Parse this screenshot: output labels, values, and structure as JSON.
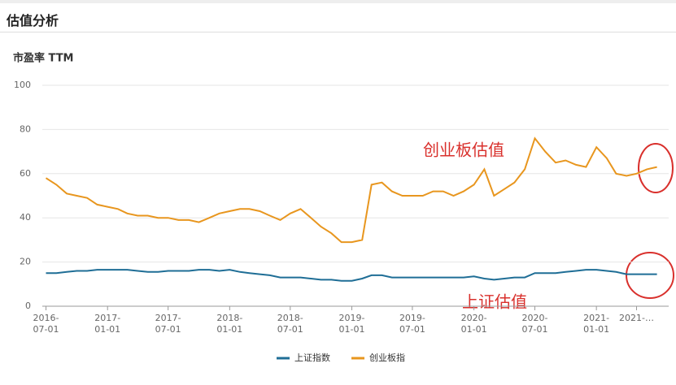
{
  "header": {
    "title": "估值分析"
  },
  "chart_data": {
    "type": "line",
    "y_label": "市盈率 TTM",
    "x": [
      "2016-07-01",
      "2016-08-01",
      "2016-09-01",
      "2016-10-01",
      "2016-11-01",
      "2016-12-01",
      "2017-01-01",
      "2017-02-01",
      "2017-03-01",
      "2017-04-01",
      "2017-05-01",
      "2017-06-01",
      "2017-07-01",
      "2017-08-01",
      "2017-09-01",
      "2017-10-01",
      "2017-11-01",
      "2017-12-01",
      "2018-01-01",
      "2018-02-01",
      "2018-03-01",
      "2018-04-01",
      "2018-05-01",
      "2018-06-01",
      "2018-07-01",
      "2018-08-01",
      "2018-09-01",
      "2018-10-01",
      "2018-11-01",
      "2018-12-01",
      "2019-01-01",
      "2019-02-01",
      "2019-03-01",
      "2019-04-01",
      "2019-05-01",
      "2019-06-01",
      "2019-07-01",
      "2019-08-01",
      "2019-09-01",
      "2019-10-01",
      "2019-11-01",
      "2019-12-01",
      "2020-01-01",
      "2020-02-01",
      "2020-03-01",
      "2020-04-01",
      "2020-05-01",
      "2020-06-01",
      "2020-07-01",
      "2020-08-01",
      "2020-09-01",
      "2020-10-01",
      "2020-11-01",
      "2020-12-01",
      "2021-01-01",
      "2021-02-01",
      "2021-03-01",
      "2021-04-01",
      "2021-05-01",
      "2021-06-01",
      "2021-07-01"
    ],
    "series": [
      {
        "name": "上证指数",
        "color": "#1f6e96",
        "values": [
          15,
          15,
          15.5,
          16,
          16,
          16.5,
          16.5,
          16.5,
          16.5,
          16,
          15.5,
          15.5,
          16,
          16,
          16,
          16.5,
          16.5,
          16,
          16.5,
          15.5,
          15,
          14.5,
          14,
          13,
          13,
          13,
          12.5,
          12,
          12,
          11.5,
          11.5,
          12.5,
          14,
          14,
          13,
          13,
          13,
          13,
          13,
          13,
          13,
          13,
          13.5,
          12.5,
          12,
          12.5,
          13,
          13,
          15,
          15,
          15,
          15.5,
          16,
          16.5,
          16.5,
          16,
          15.5,
          14.5,
          14.5,
          14.5,
          14.5
        ]
      },
      {
        "name": "创业板指",
        "color": "#e8961e",
        "values": [
          58,
          55,
          51,
          50,
          49,
          46,
          45,
          44,
          42,
          41,
          41,
          40,
          40,
          39,
          39,
          38,
          40,
          42,
          43,
          44,
          44,
          43,
          41,
          39,
          42,
          44,
          40,
          36,
          33,
          29,
          29,
          30,
          55,
          56,
          52,
          50,
          50,
          50,
          52,
          52,
          50,
          52,
          55,
          62,
          50,
          53,
          56,
          62,
          76,
          70,
          65,
          66,
          64,
          63,
          72,
          67,
          60,
          59,
          60,
          62,
          63
        ]
      }
    ],
    "xlim": [
      "2016-06-20",
      "2021-08-05"
    ],
    "xticks": [
      {
        "value": "2016-07-01",
        "label": "2016-07-01"
      },
      {
        "value": "2017-01-01",
        "label": "2017-01-01"
      },
      {
        "value": "2017-07-01",
        "label": "2017-07-01"
      },
      {
        "value": "2018-01-01",
        "label": "2018-01-01"
      },
      {
        "value": "2018-07-01",
        "label": "2018-07-01"
      },
      {
        "value": "2019-01-01",
        "label": "2019-01-01"
      },
      {
        "value": "2019-07-01",
        "label": "2019-07-01"
      },
      {
        "value": "2020-01-01",
        "label": "2020-01-01"
      },
      {
        "value": "2020-07-01",
        "label": "2020-07-01"
      },
      {
        "value": "2021-01-01",
        "label": "2021-01-01"
      },
      {
        "value": "2021-05-01",
        "label": "2021-…"
      }
    ],
    "ylim": [
      0,
      100
    ],
    "yticks": [
      0,
      20,
      40,
      60,
      80,
      100
    ],
    "grid": true,
    "annotations": [
      "创业板估值",
      "上证估值"
    ]
  }
}
